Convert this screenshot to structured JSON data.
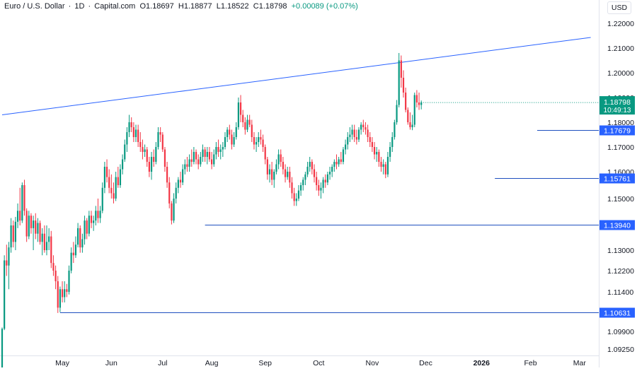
{
  "header": {
    "symbol": "Euro / U.S. Dollar",
    "interval": "1D",
    "source": "Capital.com",
    "open_label": "O",
    "open": "1.18697",
    "high_label": "H",
    "high": "1.18877",
    "low_label": "L",
    "low": "1.18522",
    "close_label": "C",
    "close": "1.18798",
    "change": "+0.00089 (+0.07%)",
    "currency": "USD"
  },
  "colors": {
    "up": "#089981",
    "down": "#f23645",
    "line": "#2962ff",
    "price_badge": "#089981",
    "level_badge": "#2962ff",
    "text": "#131722",
    "grid": "#f0f3fa"
  },
  "chart_data": {
    "type": "candlestick",
    "title": "Euro / U.S. Dollar · 1D · Capital.com",
    "y_ticks": [
      "1.22000",
      "1.21000",
      "1.20000",
      "1.19000",
      "1.18000",
      "1.17000",
      "1.16000",
      "1.15000",
      "1.13900",
      "1.13000",
      "1.12200",
      "1.11400",
      "1.09900",
      "1.09250"
    ],
    "y_tick_values": [
      1.22,
      1.21,
      1.2,
      1.19,
      1.18,
      1.17,
      1.16,
      1.15,
      1.139,
      1.13,
      1.122,
      1.114,
      1.099,
      1.0925
    ],
    "x_ticks": [
      "May",
      "Jun",
      "Jul",
      "Aug",
      "Sep",
      "Oct",
      "Nov",
      "Dec",
      "2026",
      "Feb",
      "Mar"
    ],
    "x_tick_index": [
      27,
      49,
      72,
      94,
      118,
      142,
      166,
      190,
      215,
      237,
      259
    ],
    "last_price": "1.18798",
    "countdown": "10:49:13",
    "levels": [
      {
        "label": "1.17679",
        "value": 1.17679,
        "start_index": 240
      },
      {
        "label": "1.15761",
        "value": 1.15761,
        "start_index": 221
      },
      {
        "label": "1.13940",
        "value": 1.1394,
        "start_index": 91
      },
      {
        "label": "1.10631",
        "value": 1.10631,
        "start_index": 26
      }
    ],
    "trendline": {
      "start": {
        "index": 0,
        "value": 1.183
      },
      "end": {
        "index": 264,
        "value": 1.2143
      }
    },
    "candles": [
      [
        1.0845,
        1.1005,
        1.0835,
        1.1
      ],
      [
        1.1,
        1.128,
        1.0995,
        1.126
      ],
      [
        1.126,
        1.132,
        1.12,
        1.124
      ],
      [
        1.124,
        1.133,
        1.115,
        1.131
      ],
      [
        1.131,
        1.142,
        1.129,
        1.139
      ],
      [
        1.139,
        1.141,
        1.131,
        1.133
      ],
      [
        1.133,
        1.1425,
        1.13,
        1.1405
      ],
      [
        1.1405,
        1.148,
        1.138,
        1.145
      ],
      [
        1.145,
        1.154,
        1.139,
        1.141
      ],
      [
        1.141,
        1.156,
        1.14,
        1.155
      ],
      [
        1.155,
        1.157,
        1.143,
        1.145
      ],
      [
        1.145,
        1.146,
        1.133,
        1.135
      ],
      [
        1.135,
        1.145,
        1.134,
        1.143
      ],
      [
        1.143,
        1.144,
        1.136,
        1.138
      ],
      [
        1.138,
        1.143,
        1.13,
        1.141
      ],
      [
        1.141,
        1.144,
        1.134,
        1.136
      ],
      [
        1.136,
        1.142,
        1.133,
        1.14
      ],
      [
        1.14,
        1.141,
        1.132,
        1.133
      ],
      [
        1.133,
        1.138,
        1.128,
        1.136
      ],
      [
        1.136,
        1.139,
        1.129,
        1.13
      ],
      [
        1.13,
        1.139,
        1.128,
        1.133
      ],
      [
        1.133,
        1.138,
        1.13,
        1.135
      ],
      [
        1.135,
        1.137,
        1.123,
        1.125
      ],
      [
        1.125,
        1.128,
        1.12,
        1.122
      ],
      [
        1.122,
        1.124,
        1.115,
        1.118
      ],
      [
        1.118,
        1.12,
        1.106,
        1.108
      ],
      [
        1.108,
        1.116,
        1.1063,
        1.115
      ],
      [
        1.115,
        1.118,
        1.11,
        1.112
      ],
      [
        1.112,
        1.118,
        1.11,
        1.115
      ],
      [
        1.115,
        1.117,
        1.112,
        1.114
      ],
      [
        1.114,
        1.124,
        1.113,
        1.122
      ],
      [
        1.122,
        1.131,
        1.121,
        1.129
      ],
      [
        1.129,
        1.133,
        1.125,
        1.128
      ],
      [
        1.128,
        1.135,
        1.127,
        1.132
      ],
      [
        1.132,
        1.14,
        1.131,
        1.138
      ],
      [
        1.138,
        1.139,
        1.129,
        1.131
      ],
      [
        1.131,
        1.136,
        1.129,
        1.134
      ],
      [
        1.134,
        1.143,
        1.132,
        1.141
      ],
      [
        1.141,
        1.142,
        1.134,
        1.136
      ],
      [
        1.136,
        1.145,
        1.135,
        1.143
      ],
      [
        1.143,
        1.145,
        1.138,
        1.14
      ],
      [
        1.14,
        1.143,
        1.137,
        1.141
      ],
      [
        1.141,
        1.147,
        1.139,
        1.145
      ],
      [
        1.145,
        1.15,
        1.14,
        1.142
      ],
      [
        1.142,
        1.147,
        1.14,
        1.145
      ],
      [
        1.145,
        1.156,
        1.144,
        1.154
      ],
      [
        1.154,
        1.164,
        1.152,
        1.162
      ],
      [
        1.162,
        1.165,
        1.156,
        1.158
      ],
      [
        1.158,
        1.161,
        1.152,
        1.154
      ],
      [
        1.154,
        1.159,
        1.15,
        1.152
      ],
      [
        1.152,
        1.156,
        1.148,
        1.15
      ],
      [
        1.15,
        1.16,
        1.149,
        1.158
      ],
      [
        1.158,
        1.162,
        1.154,
        1.155
      ],
      [
        1.155,
        1.163,
        1.154,
        1.161
      ],
      [
        1.161,
        1.167,
        1.159,
        1.165
      ],
      [
        1.165,
        1.173,
        1.164,
        1.171
      ],
      [
        1.171,
        1.178,
        1.168,
        1.176
      ],
      [
        1.176,
        1.183,
        1.174,
        1.18
      ],
      [
        1.18,
        1.182,
        1.176,
        1.178
      ],
      [
        1.178,
        1.18,
        1.172,
        1.174
      ],
      [
        1.174,
        1.179,
        1.172,
        1.177
      ],
      [
        1.177,
        1.179,
        1.17,
        1.172
      ],
      [
        1.172,
        1.176,
        1.168,
        1.17
      ],
      [
        1.17,
        1.173,
        1.165,
        1.168
      ],
      [
        1.168,
        1.171,
        1.166,
        1.169
      ],
      [
        1.169,
        1.17,
        1.162,
        1.164
      ],
      [
        1.164,
        1.166,
        1.158,
        1.16
      ],
      [
        1.16,
        1.168,
        1.157,
        1.166
      ],
      [
        1.166,
        1.169,
        1.162,
        1.164
      ],
      [
        1.164,
        1.172,
        1.163,
        1.17
      ],
      [
        1.17,
        1.178,
        1.169,
        1.176
      ],
      [
        1.176,
        1.178,
        1.172,
        1.175
      ],
      [
        1.175,
        1.176,
        1.168,
        1.169
      ],
      [
        1.169,
        1.17,
        1.16,
        1.162
      ],
      [
        1.162,
        1.164,
        1.154,
        1.156
      ],
      [
        1.156,
        1.158,
        1.146,
        1.148
      ],
      [
        1.148,
        1.149,
        1.1394,
        1.141
      ],
      [
        1.141,
        1.152,
        1.14,
        1.15
      ],
      [
        1.15,
        1.156,
        1.148,
        1.154
      ],
      [
        1.154,
        1.158,
        1.152,
        1.157
      ],
      [
        1.157,
        1.16,
        1.154,
        1.156
      ],
      [
        1.156,
        1.163,
        1.155,
        1.161
      ],
      [
        1.161,
        1.165,
        1.159,
        1.163
      ],
      [
        1.163,
        1.166,
        1.16,
        1.162
      ],
      [
        1.162,
        1.167,
        1.16,
        1.165
      ],
      [
        1.165,
        1.169,
        1.162,
        1.164
      ],
      [
        1.164,
        1.17,
        1.163,
        1.168
      ],
      [
        1.168,
        1.169,
        1.163,
        1.165
      ],
      [
        1.165,
        1.167,
        1.161,
        1.163
      ],
      [
        1.163,
        1.168,
        1.162,
        1.166
      ],
      [
        1.166,
        1.171,
        1.164,
        1.169
      ],
      [
        1.169,
        1.17,
        1.164,
        1.166
      ],
      [
        1.166,
        1.17,
        1.163,
        1.168
      ],
      [
        1.168,
        1.17,
        1.164,
        1.165
      ],
      [
        1.165,
        1.168,
        1.161,
        1.163
      ],
      [
        1.163,
        1.169,
        1.162,
        1.167
      ],
      [
        1.167,
        1.172,
        1.165,
        1.17
      ],
      [
        1.17,
        1.173,
        1.166,
        1.168
      ],
      [
        1.168,
        1.171,
        1.165,
        1.169
      ],
      [
        1.169,
        1.172,
        1.166,
        1.17
      ],
      [
        1.17,
        1.176,
        1.169,
        1.174
      ],
      [
        1.174,
        1.178,
        1.172,
        1.177
      ],
      [
        1.177,
        1.179,
        1.173,
        1.175
      ],
      [
        1.175,
        1.177,
        1.169,
        1.171
      ],
      [
        1.171,
        1.176,
        1.17,
        1.174
      ],
      [
        1.174,
        1.18,
        1.173,
        1.178
      ],
      [
        1.178,
        1.19,
        1.177,
        1.188
      ],
      [
        1.188,
        1.191,
        1.18,
        1.183
      ],
      [
        1.183,
        1.185,
        1.178,
        1.18
      ],
      [
        1.18,
        1.182,
        1.175,
        1.177
      ],
      [
        1.177,
        1.183,
        1.176,
        1.181
      ],
      [
        1.181,
        1.183,
        1.178,
        1.179
      ],
      [
        1.179,
        1.181,
        1.172,
        1.174
      ],
      [
        1.174,
        1.176,
        1.169,
        1.171
      ],
      [
        1.171,
        1.174,
        1.168,
        1.172
      ],
      [
        1.172,
        1.176,
        1.17,
        1.174
      ],
      [
        1.174,
        1.177,
        1.171,
        1.173
      ],
      [
        1.173,
        1.175,
        1.168,
        1.17
      ],
      [
        1.17,
        1.171,
        1.163,
        1.165
      ],
      [
        1.165,
        1.166,
        1.157,
        1.159
      ],
      [
        1.159,
        1.163,
        1.156,
        1.161
      ],
      [
        1.161,
        1.164,
        1.155,
        1.157
      ],
      [
        1.157,
        1.161,
        1.154,
        1.16
      ],
      [
        1.16,
        1.165,
        1.159,
        1.163
      ],
      [
        1.163,
        1.169,
        1.161,
        1.167
      ],
      [
        1.167,
        1.169,
        1.162,
        1.164
      ],
      [
        1.164,
        1.166,
        1.159,
        1.161
      ],
      [
        1.161,
        1.163,
        1.156,
        1.158
      ],
      [
        1.158,
        1.162,
        1.157,
        1.16
      ],
      [
        1.16,
        1.162,
        1.154,
        1.156
      ],
      [
        1.156,
        1.158,
        1.15,
        1.152
      ],
      [
        1.152,
        1.154,
        1.147,
        1.149
      ],
      [
        1.149,
        1.152,
        1.147,
        1.15
      ],
      [
        1.15,
        1.155,
        1.149,
        1.153
      ],
      [
        1.153,
        1.156,
        1.151,
        1.155
      ],
      [
        1.155,
        1.158,
        1.153,
        1.157
      ],
      [
        1.157,
        1.16,
        1.155,
        1.159
      ],
      [
        1.159,
        1.164,
        1.158,
        1.162
      ],
      [
        1.162,
        1.166,
        1.16,
        1.164
      ],
      [
        1.164,
        1.165,
        1.159,
        1.161
      ],
      [
        1.161,
        1.163,
        1.156,
        1.158
      ],
      [
        1.158,
        1.16,
        1.153,
        1.155
      ],
      [
        1.155,
        1.157,
        1.151,
        1.153
      ],
      [
        1.153,
        1.156,
        1.15,
        1.154
      ],
      [
        1.154,
        1.158,
        1.152,
        1.157
      ],
      [
        1.157,
        1.159,
        1.154,
        1.156
      ],
      [
        1.156,
        1.16,
        1.155,
        1.159
      ],
      [
        1.159,
        1.162,
        1.157,
        1.16
      ],
      [
        1.16,
        1.163,
        1.158,
        1.162
      ],
      [
        1.162,
        1.165,
        1.16,
        1.164
      ],
      [
        1.164,
        1.167,
        1.161,
        1.163
      ],
      [
        1.163,
        1.166,
        1.162,
        1.165
      ],
      [
        1.165,
        1.168,
        1.163,
        1.164
      ],
      [
        1.164,
        1.17,
        1.163,
        1.169
      ],
      [
        1.169,
        1.173,
        1.167,
        1.171
      ],
      [
        1.171,
        1.176,
        1.169,
        1.174
      ],
      [
        1.174,
        1.178,
        1.172,
        1.175
      ],
      [
        1.175,
        1.179,
        1.173,
        1.177
      ],
      [
        1.177,
        1.179,
        1.172,
        1.174
      ],
      [
        1.174,
        1.177,
        1.171,
        1.173
      ],
      [
        1.173,
        1.178,
        1.172,
        1.177
      ],
      [
        1.177,
        1.18,
        1.175,
        1.179
      ],
      [
        1.179,
        1.181,
        1.176,
        1.178
      ],
      [
        1.178,
        1.18,
        1.175,
        1.177
      ],
      [
        1.177,
        1.179,
        1.172,
        1.174
      ],
      [
        1.174,
        1.176,
        1.17,
        1.172
      ],
      [
        1.172,
        1.174,
        1.168,
        1.17
      ],
      [
        1.17,
        1.172,
        1.165,
        1.167
      ],
      [
        1.167,
        1.17,
        1.164,
        1.168
      ],
      [
        1.168,
        1.169,
        1.162,
        1.164
      ],
      [
        1.164,
        1.166,
        1.16,
        1.162
      ],
      [
        1.162,
        1.165,
        1.159,
        1.163
      ],
      [
        1.163,
        1.164,
        1.1576,
        1.159
      ],
      [
        1.159,
        1.168,
        1.158,
        1.166
      ],
      [
        1.166,
        1.172,
        1.164,
        1.17
      ],
      [
        1.17,
        1.176,
        1.168,
        1.174
      ],
      [
        1.174,
        1.181,
        1.173,
        1.18
      ],
      [
        1.18,
        1.189,
        1.179,
        1.187
      ],
      [
        1.187,
        1.208,
        1.186,
        1.205
      ],
      [
        1.205,
        1.207,
        1.194,
        1.198
      ],
      [
        1.198,
        1.201,
        1.19,
        1.192
      ],
      [
        1.192,
        1.194,
        1.184,
        1.185
      ],
      [
        1.185,
        1.186,
        1.179,
        1.18
      ],
      [
        1.18,
        1.184,
        1.177,
        1.178
      ],
      [
        1.178,
        1.183,
        1.1768,
        1.179
      ],
      [
        1.179,
        1.192,
        1.178,
        1.191
      ],
      [
        1.191,
        1.193,
        1.186,
        1.188
      ],
      [
        1.188,
        1.192,
        1.185,
        1.187
      ],
      [
        1.187,
        1.1888,
        1.1852,
        1.188
      ]
    ]
  }
}
